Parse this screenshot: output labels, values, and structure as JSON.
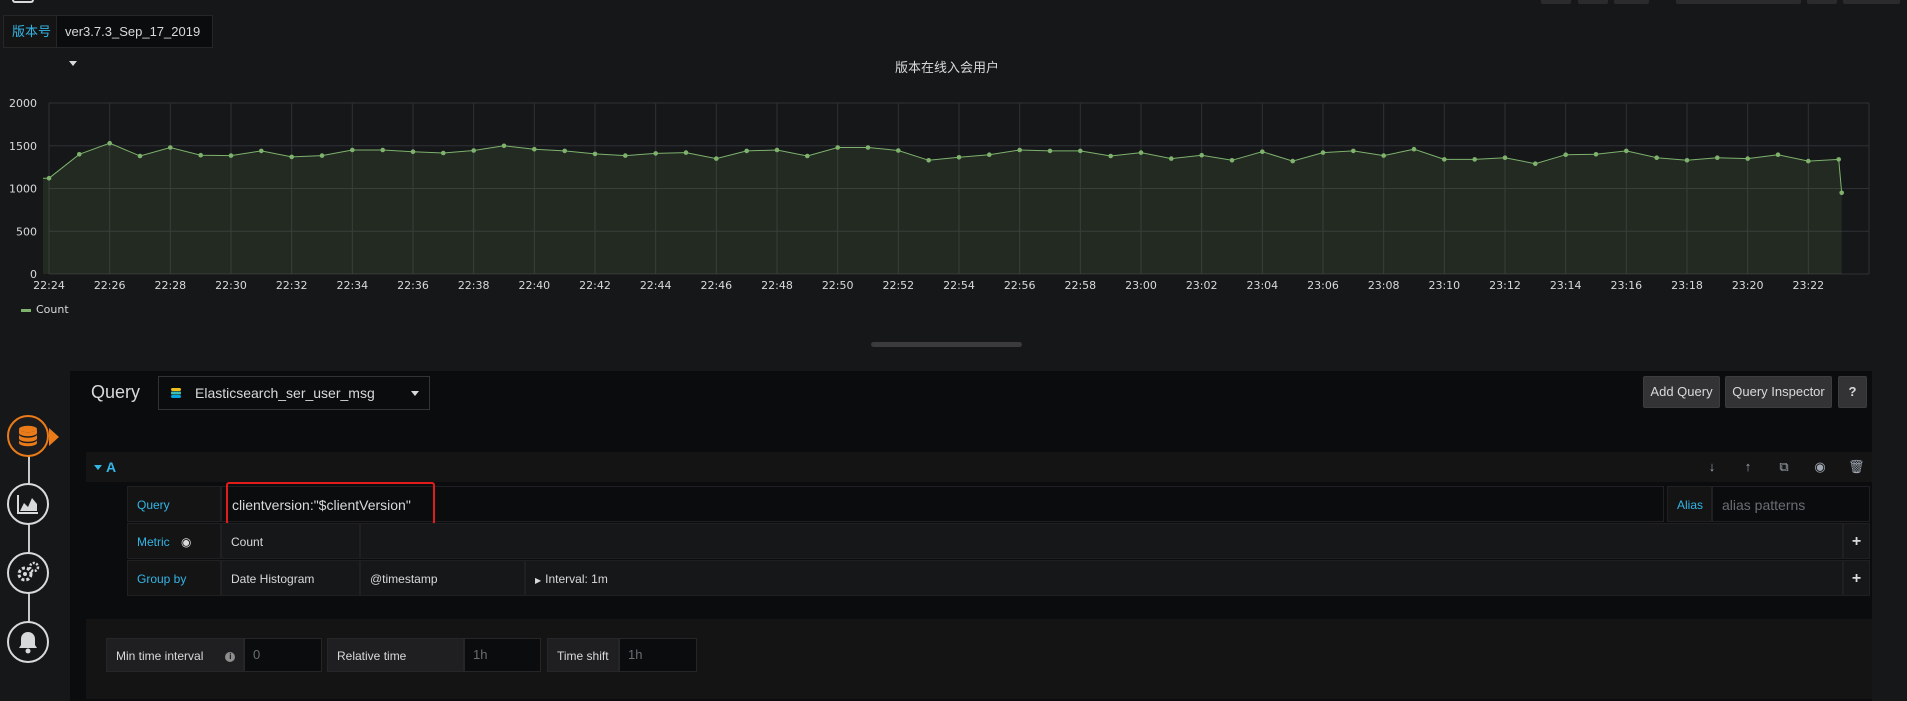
{
  "variable": {
    "label": "版本号",
    "value": "ver3.7.3_Sep_17_2019"
  },
  "chart_data": {
    "type": "area",
    "title": "版本在线入会用户",
    "x_tick_labels": [
      "22:24",
      "22:26",
      "22:28",
      "22:30",
      "22:32",
      "22:34",
      "22:36",
      "22:38",
      "22:40",
      "22:42",
      "22:44",
      "22:46",
      "22:48",
      "22:50",
      "22:52",
      "22:54",
      "22:56",
      "22:58",
      "23:00",
      "23:02",
      "23:04",
      "23:06",
      "23:08",
      "23:10",
      "23:12",
      "23:14",
      "23:16",
      "23:18",
      "23:20",
      "23:22"
    ],
    "y_tick_labels": [
      "0",
      "500",
      "1000",
      "1500",
      "2000"
    ],
    "ylim": [
      0,
      2000
    ],
    "x_range_minutes": [
      0,
      60
    ],
    "series": [
      {
        "name": "Count",
        "color": "#7eb26d",
        "x_minutes": [
          0,
          1,
          2,
          3,
          4,
          5,
          6,
          7,
          8,
          9,
          10,
          11,
          12,
          13,
          14,
          15,
          16,
          17,
          18,
          19,
          20,
          21,
          22,
          23,
          24,
          25,
          26,
          27,
          28,
          29,
          30,
          31,
          32,
          33,
          34,
          35,
          36,
          37,
          38,
          39,
          40,
          41,
          42,
          43,
          44,
          45,
          46,
          47,
          48,
          49,
          50,
          51,
          52,
          53,
          54,
          55,
          56,
          57,
          58,
          59,
          59.1
        ],
        "values": [
          1120,
          1400,
          1530,
          1380,
          1480,
          1390,
          1385,
          1440,
          1370,
          1385,
          1450,
          1450,
          1430,
          1415,
          1445,
          1500,
          1460,
          1440,
          1405,
          1385,
          1410,
          1420,
          1350,
          1440,
          1450,
          1380,
          1480,
          1480,
          1445,
          1330,
          1365,
          1395,
          1450,
          1440,
          1440,
          1380,
          1420,
          1350,
          1390,
          1330,
          1430,
          1320,
          1420,
          1440,
          1385,
          1460,
          1340,
          1340,
          1360,
          1290,
          1395,
          1400,
          1440,
          1360,
          1330,
          1360,
          1350,
          1395,
          1320,
          1340,
          950
        ]
      }
    ],
    "legend": [
      "Count"
    ],
    "legend_position": "bottom-left",
    "grid": true
  },
  "query_panel": {
    "title": "Query",
    "datasource": "Elasticsearch_ser_user_msg",
    "buttons": {
      "add_query": "Add Query",
      "inspector": "Query Inspector",
      "help": "?"
    },
    "query_a": {
      "ref": "A",
      "query_label": "Query",
      "query_value": "clientversion:\"$clientVersion\"",
      "alias_label": "Alias",
      "alias_placeholder": "alias patterns",
      "metric_label": "Metric",
      "metric_value": "Count",
      "groupby_label": "Group by",
      "groupby_type": "Date Histogram",
      "groupby_field": "@timestamp",
      "groupby_interval": "Interval: 1m"
    },
    "options": {
      "min_interval_label": "Min time interval",
      "min_interval_placeholder": "0",
      "relative_time_label": "Relative time",
      "relative_time_placeholder": "1h",
      "time_shift_label": "Time shift",
      "time_shift_placeholder": "1h"
    }
  }
}
